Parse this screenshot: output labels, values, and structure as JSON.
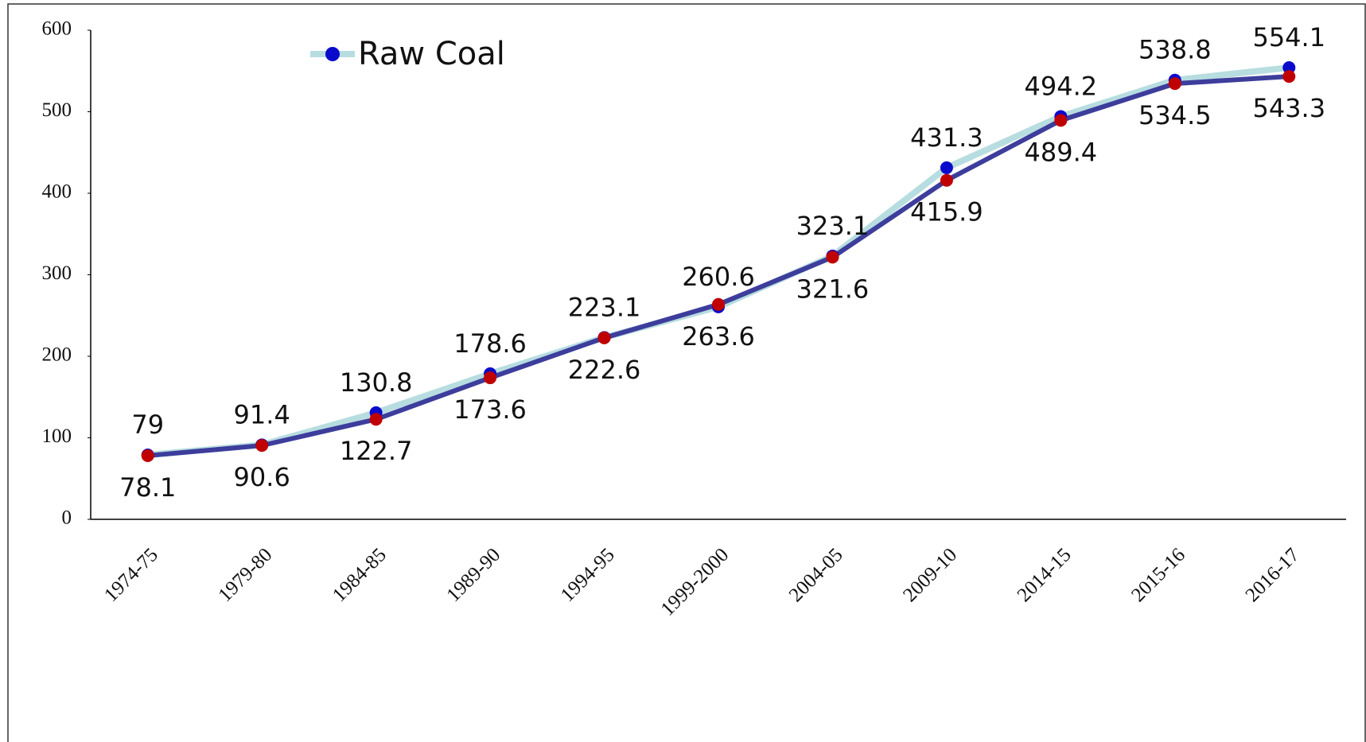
{
  "chart_data": {
    "type": "line",
    "categories": [
      "1974-75",
      "1979-80",
      "1984-85",
      "1989-90",
      "1994-95",
      "1999-2000",
      "2004-05",
      "2009-10",
      "2014-15",
      "2015-16",
      "2016-17"
    ],
    "series": [
      {
        "name": "Raw Coal",
        "color": "#b7dde0",
        "marker_color": "#0a0acc",
        "values": [
          79,
          91.4,
          130.8,
          178.6,
          223.1,
          260.6,
          323.1,
          431.3,
          494.2,
          538.8,
          554.1
        ]
      },
      {
        "color": "#3d3d9c",
        "marker_color": "#c00000",
        "values": [
          78.1,
          90.6,
          122.7,
          173.6,
          222.6,
          263.6,
          321.6,
          415.9,
          489.4,
          534.5,
          543.3
        ]
      }
    ],
    "ylim": [
      0,
      600
    ],
    "yticks": [
      0,
      100,
      200,
      300,
      400,
      500,
      600
    ]
  }
}
